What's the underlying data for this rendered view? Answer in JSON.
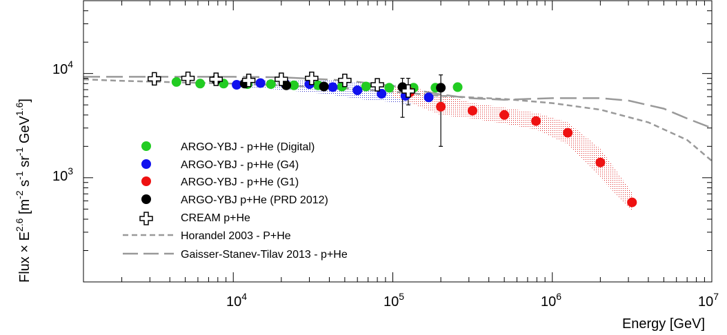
{
  "chart_data": {
    "type": "scatter",
    "xlabel": "Energy [GeV]",
    "ylabel": {
      "base": "Flux × E",
      "base_exp": "2.6",
      "units_open": " [m",
      "m_exp": "-2",
      "s": " s",
      "s_exp": "-1",
      "sr": " sr",
      "sr_exp": "-1",
      "gev": " GeV",
      "gev_exp": "1.6",
      "close": "]"
    },
    "xscale": "log",
    "yscale": "log",
    "xlim": [
      1150,
      10000000
    ],
    "ylim": [
      100,
      50000
    ],
    "x_ticks": [
      {
        "base": "10",
        "exp": "4",
        "value": 10000
      },
      {
        "base": "10",
        "exp": "5",
        "value": 100000
      },
      {
        "base": "10",
        "exp": "6",
        "value": 1000000
      },
      {
        "base": "10",
        "exp": "7",
        "value": 10000000
      }
    ],
    "y_ticks": [
      {
        "base": "10",
        "exp": "3",
        "value": 1000
      },
      {
        "base": "10",
        "exp": "4",
        "value": 10000
      }
    ],
    "grid": false,
    "legend_position": "bottom-left",
    "series": [
      {
        "name": "ARGO-YBJ - p+He (Digital)",
        "color": "#22cc22",
        "marker": "circle",
        "x": [
          4400,
          6200,
          8700,
          12300,
          17200,
          24000,
          34000,
          48000,
          68000,
          95000,
          135000,
          185000,
          255000
        ],
        "y": [
          8300,
          8000,
          8000,
          7900,
          7900,
          7700,
          7700,
          7500,
          7500,
          7300,
          7300,
          7300,
          7400
        ]
      },
      {
        "name": "ARGO-YBJ - p+He (G4)",
        "color": "#1111ee",
        "marker": "circle",
        "x": [
          10500,
          14800,
          21000,
          30000,
          42000,
          60000,
          85000,
          120000,
          168000
        ],
        "y": [
          7800,
          8100,
          8100,
          7900,
          7400,
          6900,
          6400,
          6100,
          5900
        ]
      },
      {
        "name": "ARGO-YBJ - p+He (G1)",
        "color": "#ee1111",
        "marker": "circle",
        "x": [
          128000,
          200000,
          316000,
          500000,
          790000,
          1250000,
          2000000,
          3160000
        ],
        "y": [
          6600,
          4800,
          4400,
          4000,
          3500,
          2700,
          1400,
          580
        ]
      },
      {
        "name": "ARGO-YBJ p+He (PRD 2012)",
        "color": "#000000",
        "marker": "circle",
        "x": [
          7800,
          11800,
          21500,
          37000,
          115000,
          200000
        ],
        "y": [
          8700,
          8000,
          7700,
          7500,
          7400,
          7300
        ],
        "err": [
          [
            null,
            null
          ],
          [
            null,
            null
          ],
          [
            null,
            null
          ],
          [
            null,
            null
          ],
          [
            3800,
            9000
          ],
          [
            2000,
            9700
          ]
        ]
      },
      {
        "name": "CREAM p+He",
        "color": "#000000",
        "marker": "open-cross",
        "x": [
          3200,
          5200,
          7800,
          12500,
          20000,
          31000,
          50000,
          80000,
          125000
        ],
        "y": [
          8900,
          9000,
          8800,
          8600,
          8800,
          9000,
          8600,
          7800,
          6800
        ],
        "err": [
          [
            null,
            null
          ],
          [
            null,
            null
          ],
          [
            null,
            null
          ],
          [
            null,
            null
          ],
          [
            null,
            null
          ],
          [
            null,
            null
          ],
          [
            null,
            null
          ],
          [
            null,
            null
          ],
          [
            5000,
            9000
          ]
        ]
      },
      {
        "name": "Horandel 2003 - P+He",
        "color": "#999999",
        "style": "short-dash",
        "x": [
          1150,
          2000,
          5000,
          10000,
          20000,
          50000,
          100000,
          200000,
          500000,
          1000000,
          2000000,
          4000000,
          7000000,
          10000000
        ],
        "y": [
          8800,
          8500,
          8200,
          8000,
          7700,
          7200,
          6700,
          6100,
          5700,
          5200,
          4500,
          3400,
          2300,
          1450
        ]
      },
      {
        "name": "Gaisser-Stanev-Tilav 2013 - p+He",
        "color": "#999999",
        "style": "long-dash",
        "x": [
          1150,
          2000,
          5000,
          10000,
          20000,
          50000,
          100000,
          150000,
          200000,
          300000,
          500000,
          1000000,
          2000000,
          3000000,
          5000000,
          7000000,
          10000000
        ],
        "y": [
          9300,
          9300,
          9300,
          9300,
          9200,
          8600,
          7600,
          6800,
          6300,
          5800,
          5600,
          5800,
          5800,
          5500,
          4600,
          3700,
          3000
        ]
      }
    ],
    "bands": [
      {
        "color": "#3333cc",
        "x": [
          10000,
          20000,
          40000,
          60000,
          100000,
          130000
        ],
        "ylow": [
          7500,
          7000,
          6300,
          5700,
          5300,
          5000
        ],
        "yhigh": [
          8600,
          8800,
          8600,
          8300,
          7800,
          7300
        ]
      },
      {
        "color": "#dd2222",
        "x": [
          100000,
          130000,
          200000,
          316000,
          500000,
          790000,
          1250000,
          2000000,
          3160000
        ],
        "ylow": [
          6000,
          5200,
          4000,
          3700,
          3300,
          2900,
          2100,
          1000,
          480
        ],
        "yhigh": [
          7600,
          7400,
          6400,
          5200,
          4700,
          4200,
          3400,
          1900,
          720
        ]
      }
    ]
  }
}
